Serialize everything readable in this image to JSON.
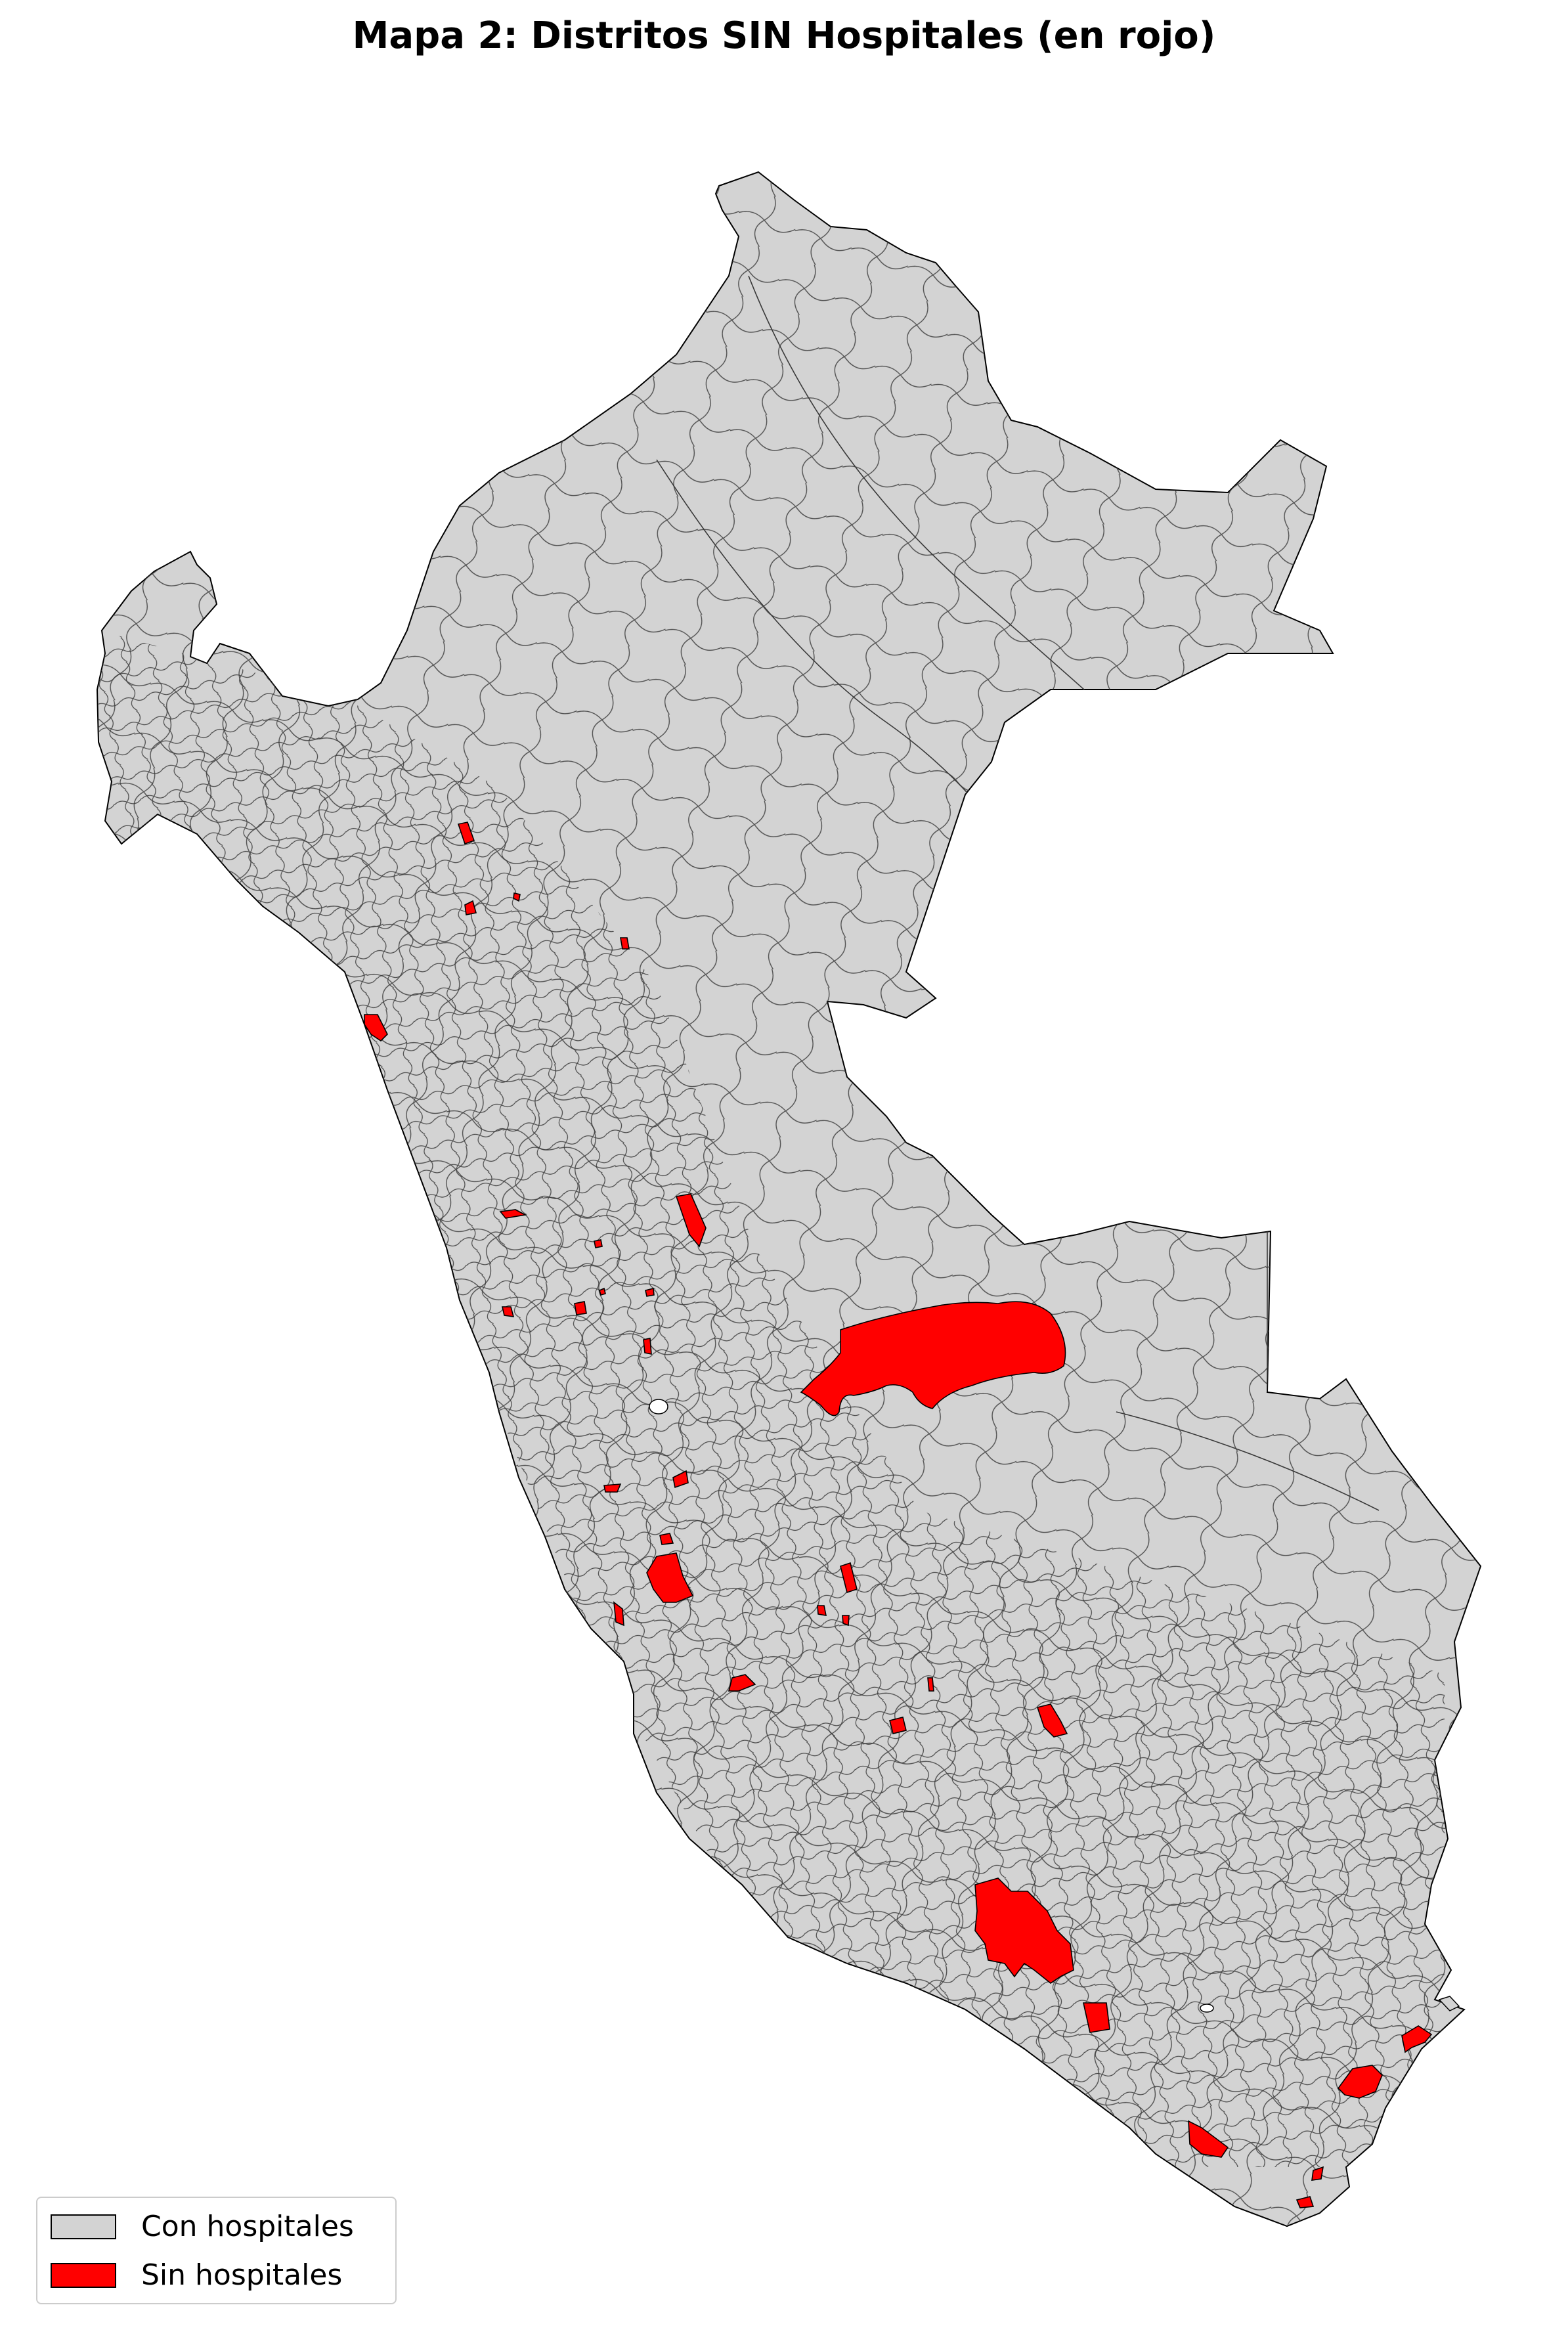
{
  "title": "Mapa 2: Distritos SIN Hospitales (en rojo)",
  "colors": {
    "with_hospitals": "#d3d3d3",
    "without_hospitals": "#ff0000",
    "border": "#000000"
  },
  "legend": {
    "placement": "bottom-left",
    "items": [
      {
        "label": "Con hospitales",
        "color": "#d3d3d3"
      },
      {
        "label": "Sin hospitales",
        "color": "#ff0000"
      }
    ]
  }
}
